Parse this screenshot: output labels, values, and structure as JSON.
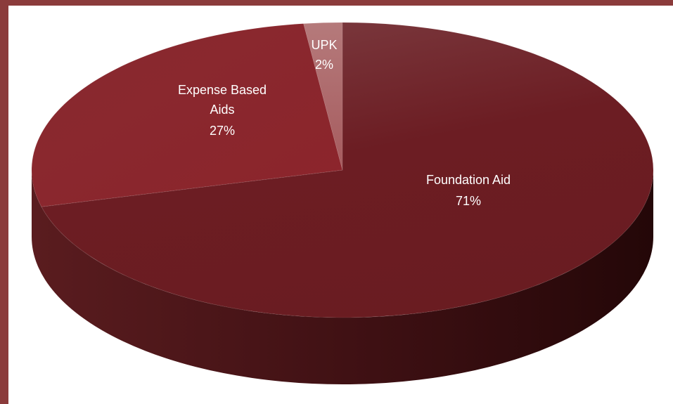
{
  "chart_data": {
    "type": "pie",
    "title": "",
    "slices": [
      {
        "label": "Foundation Aid",
        "value": 71,
        "display": "71%",
        "color": "#6e1c22"
      },
      {
        "label": "Expense Based Aids",
        "value": 27,
        "display": "27%",
        "color": "#8a252c"
      },
      {
        "label": "UPK",
        "value": 2,
        "display": "2%",
        "color": "#b06a6a"
      }
    ],
    "style": "3d"
  },
  "colors": {
    "frame": "#8b3b3b",
    "background": "#ffffff",
    "label_text": "#ffffff"
  }
}
